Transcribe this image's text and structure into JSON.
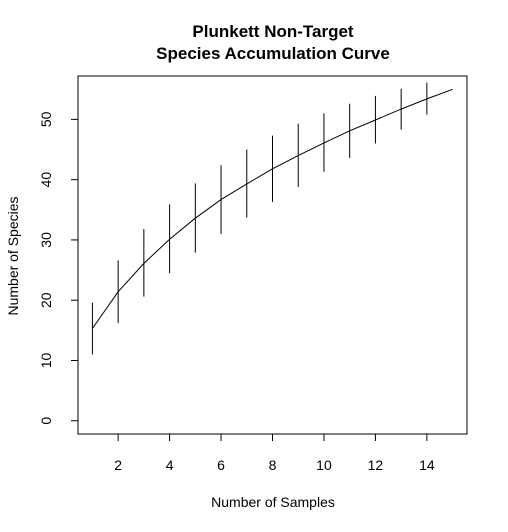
{
  "chart_data": {
    "type": "line",
    "title_line1": "Plunkett Non-Target",
    "title_line2": "Species Accumulation Curve",
    "xlabel": "Number of Samples",
    "ylabel": "Number of Species",
    "xlim": [
      0.44,
      15.56
    ],
    "ylim": [
      -2.2,
      57.2
    ],
    "xticks": [
      "2",
      "4",
      "6",
      "8",
      "10",
      "12",
      "14"
    ],
    "yticks": [
      "0",
      "10",
      "20",
      "30",
      "40",
      "50"
    ],
    "series": [
      {
        "x": [
          1,
          2,
          3,
          4,
          5,
          6,
          7,
          8,
          9,
          10,
          11,
          12,
          13,
          14,
          15
        ],
        "y": [
          15.3,
          21.4,
          26.1,
          30.1,
          33.6,
          36.7,
          39.3,
          41.8,
          44.0,
          46.1,
          48.1,
          49.9,
          51.7,
          53.4,
          55.0
        ],
        "lower": [
          11.0,
          16.2,
          20.6,
          24.5,
          27.9,
          31.0,
          33.7,
          36.3,
          38.8,
          41.3,
          43.6,
          46.0,
          48.3,
          50.8,
          null
        ],
        "upper": [
          19.6,
          26.6,
          31.8,
          35.9,
          39.4,
          42.4,
          45.0,
          47.3,
          49.3,
          51.0,
          52.6,
          53.9,
          55.1,
          56.1,
          null
        ]
      }
    ],
    "grid": false,
    "legend": "none"
  }
}
